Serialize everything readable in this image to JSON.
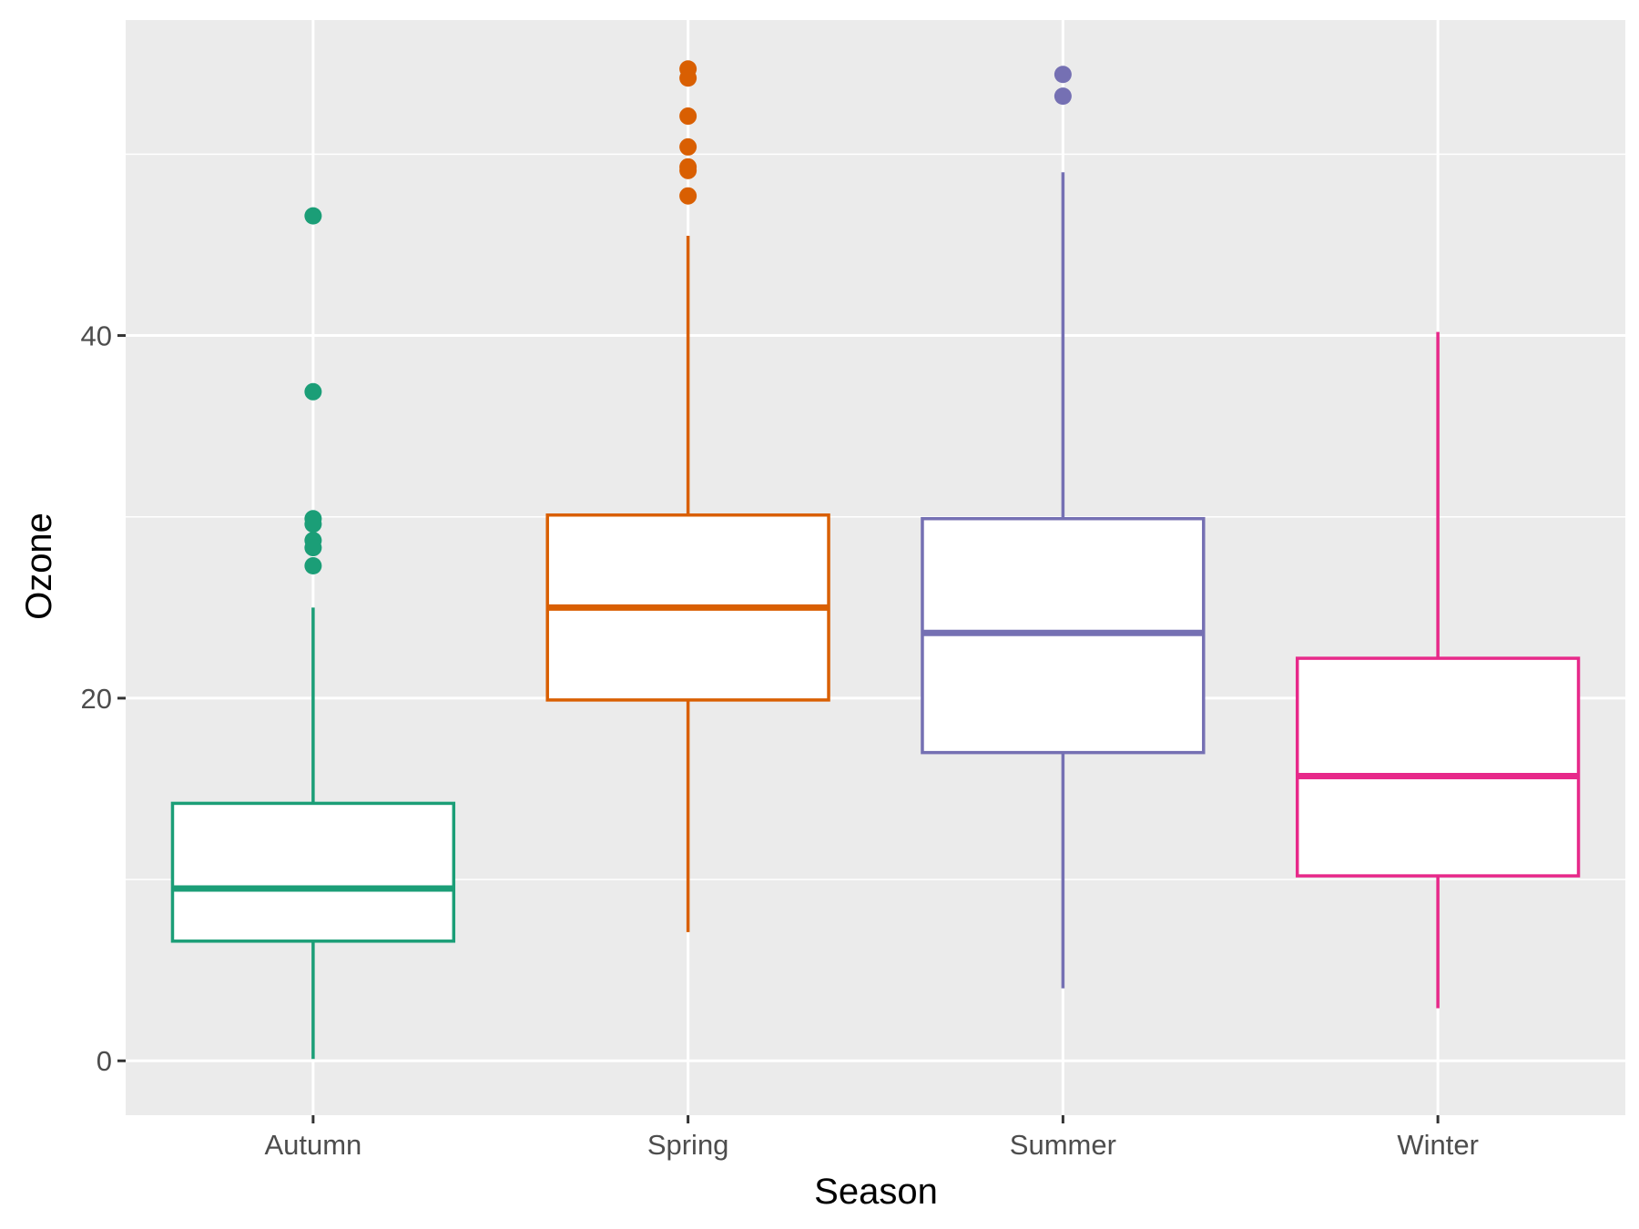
{
  "chart_data": {
    "type": "boxplot",
    "title": "",
    "xlabel": "Season",
    "ylabel": "Ozone",
    "categories": [
      "Autumn",
      "Spring",
      "Summer",
      "Winter"
    ],
    "ylim": [
      -3.0,
      57.4
    ],
    "yticks": [
      0,
      20,
      40
    ],
    "grid": true,
    "legend": "none",
    "panel_background": "#EBEBEB",
    "series": [
      {
        "name": "Autumn",
        "color": "#1B9E77",
        "whisker_low": 0.1,
        "q1": 6.6,
        "median": 9.5,
        "q3": 14.2,
        "whisker_high": 25.0,
        "outliers": [
          46.6,
          36.9,
          29.9,
          29.6,
          28.7,
          28.3,
          27.3
        ]
      },
      {
        "name": "Spring",
        "color": "#D95F02",
        "whisker_low": 7.1,
        "q1": 19.9,
        "median": 25.0,
        "q3": 30.1,
        "whisker_high": 45.5,
        "outliers": [
          54.7,
          54.2,
          52.1,
          50.4,
          49.3,
          49.1,
          47.7
        ]
      },
      {
        "name": "Summer",
        "color": "#7570B3",
        "whisker_low": 4.0,
        "q1": 17.0,
        "median": 23.6,
        "q3": 29.9,
        "whisker_high": 49.0,
        "outliers": [
          54.4,
          53.2
        ]
      },
      {
        "name": "Winter",
        "color": "#E7298A",
        "whisker_low": 2.9,
        "q1": 10.2,
        "median": 15.7,
        "q3": 22.2,
        "whisker_high": 40.2,
        "outliers": []
      }
    ]
  }
}
